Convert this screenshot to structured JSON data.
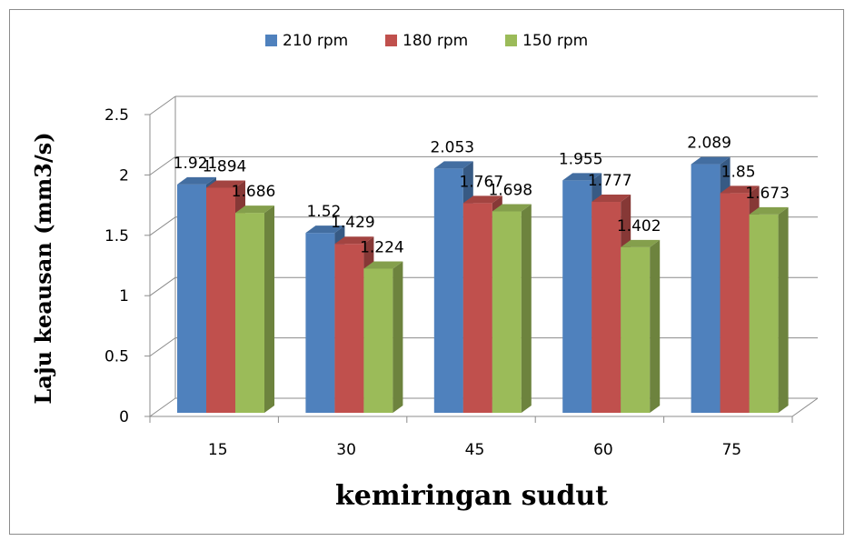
{
  "chart_data": {
    "type": "bar",
    "title": "",
    "xlabel": "kemiringan sudut",
    "ylabel": "Laju keausan (mm3/s)",
    "categories": [
      "15",
      "30",
      "45",
      "60",
      "75"
    ],
    "ylim": [
      0,
      2.5
    ],
    "yticks": [
      "0",
      "0.5",
      "1",
      "1.5",
      "2",
      "2.5"
    ],
    "grid": true,
    "legend_position": "top",
    "series": [
      {
        "name": "210 rpm",
        "color": "#4f81bd",
        "values": [
          1.921,
          1.52,
          2.053,
          1.955,
          2.089
        ]
      },
      {
        "name": "180 rpm",
        "color": "#c0504d",
        "values": [
          1.894,
          1.429,
          1.767,
          1.777,
          1.85
        ]
      },
      {
        "name": "150 rpm",
        "color": "#9bbb59",
        "values": [
          1.686,
          1.224,
          1.698,
          1.402,
          1.673
        ]
      }
    ]
  }
}
